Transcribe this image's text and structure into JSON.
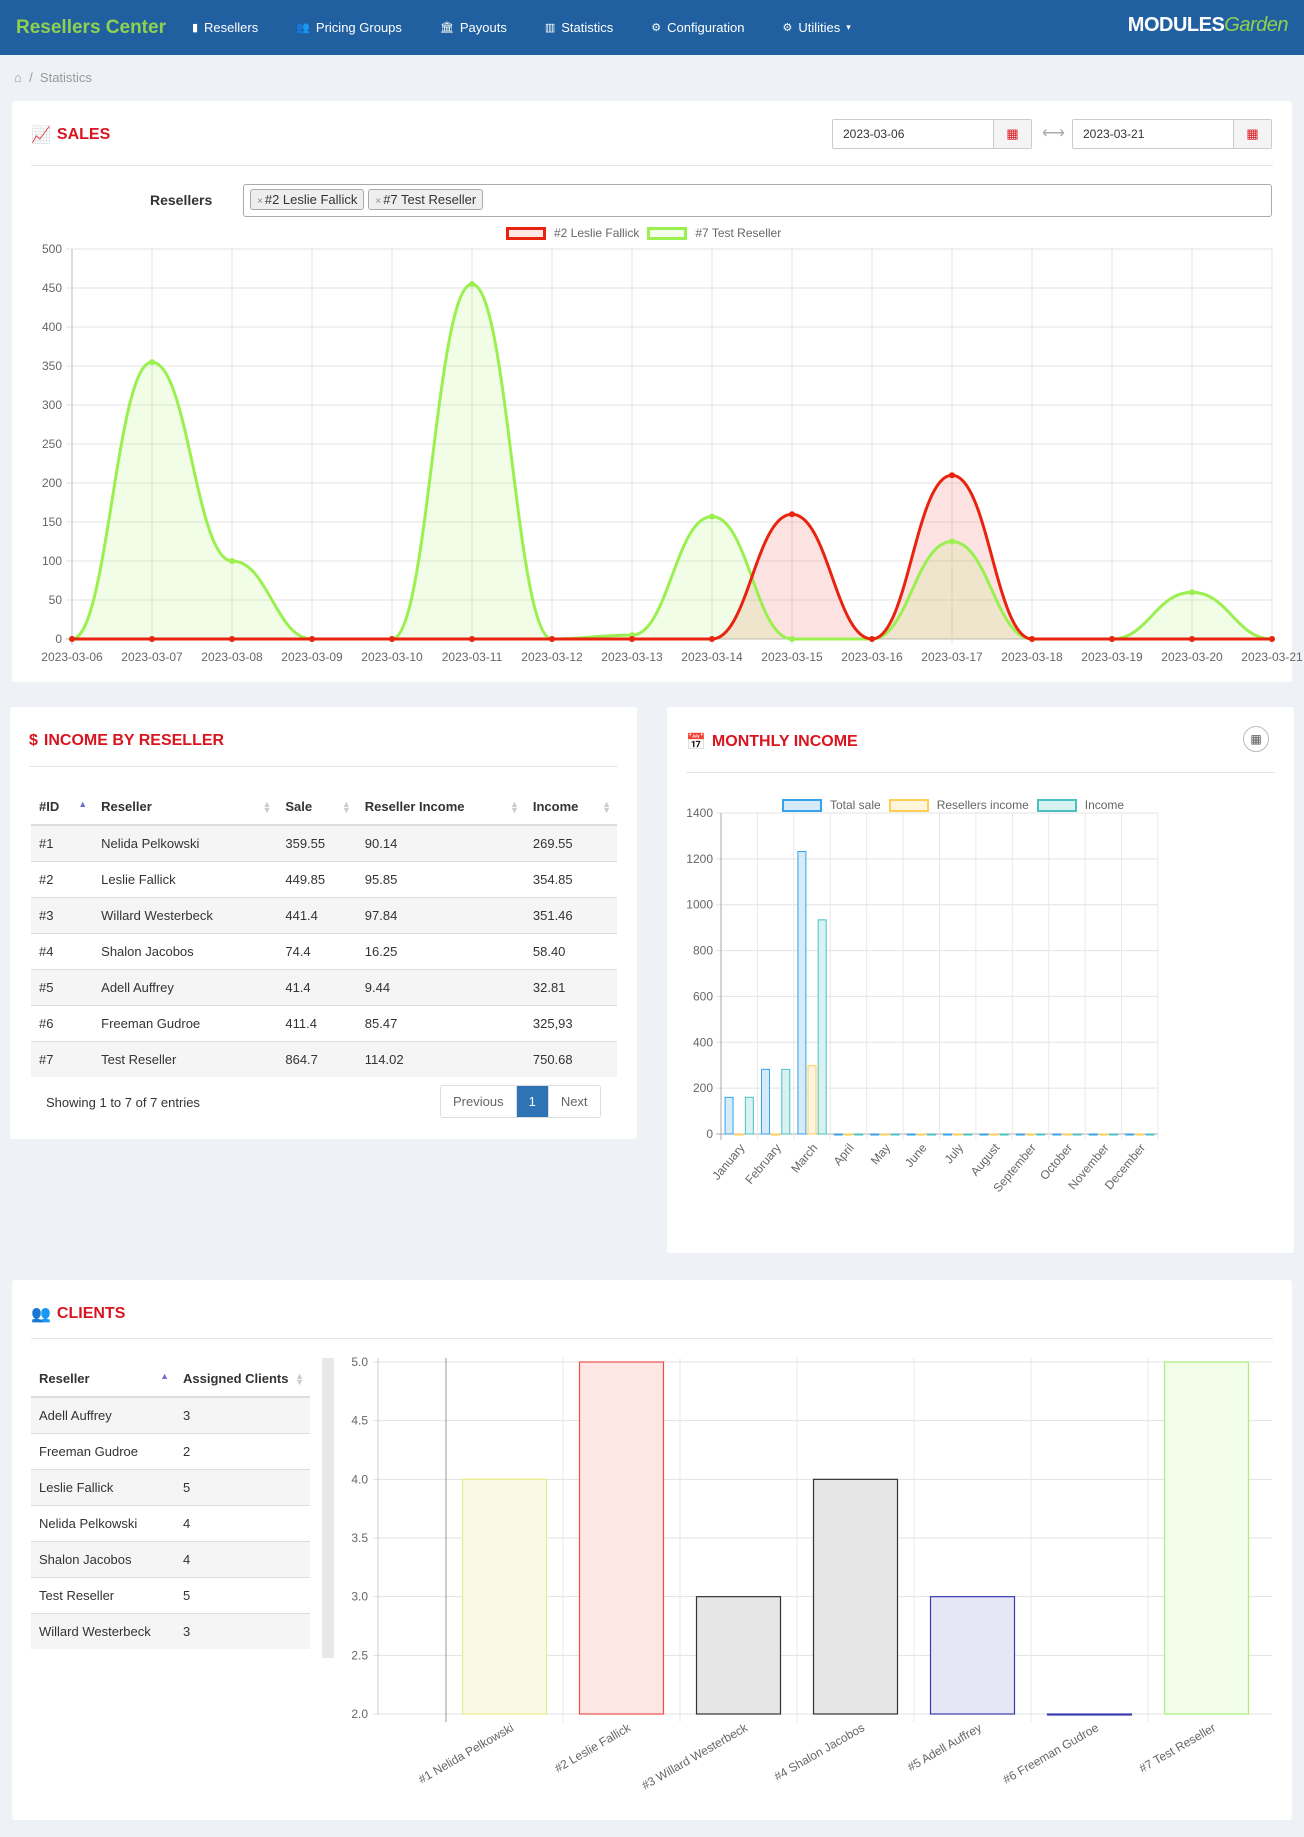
{
  "nav": {
    "brand": "Resellers Center",
    "items": [
      {
        "label": "Resellers",
        "icon": "briefcase-icon",
        "glyph": "▮"
      },
      {
        "label": "Pricing Groups",
        "icon": "users-icon",
        "glyph": "👥"
      },
      {
        "label": "Payouts",
        "icon": "bank-icon",
        "glyph": "🏛"
      },
      {
        "label": "Statistics",
        "icon": "bar-chart-icon",
        "glyph": "▥"
      },
      {
        "label": "Configuration",
        "icon": "gears-icon",
        "glyph": "⚙"
      },
      {
        "label": "Utilities",
        "icon": "gear-icon",
        "glyph": "⚙"
      }
    ],
    "logo": "MODULES",
    "logo2": "Garden"
  },
  "breadcrumb": {
    "current": "Statistics"
  },
  "sales": {
    "title": "SALES",
    "date_from": "2023-03-06",
    "date_to": "2023-03-21",
    "resellers_label": "Resellers",
    "selected": [
      "#2 Leslie Fallick",
      "#7 Test Reseller"
    ]
  },
  "income": {
    "title": "INCOME BY RESELLER",
    "columns": [
      "#ID",
      "Reseller",
      "Sale",
      "Reseller Income",
      "Income"
    ],
    "rows": [
      [
        "#1",
        "Nelida Pelkowski",
        "359.55",
        "90.14",
        "269.55"
      ],
      [
        "#2",
        "Leslie Fallick",
        "449.85",
        "95.85",
        "354.85"
      ],
      [
        "#3",
        "Willard Westerbeck",
        "441.4",
        "97.84",
        "351.46"
      ],
      [
        "#4",
        "Shalon Jacobos",
        "74.4",
        "16.25",
        "58.40"
      ],
      [
        "#5",
        "Adell Auffrey",
        "41.4",
        "9.44",
        "32.81"
      ],
      [
        "#6",
        "Freeman Gudroe",
        "411.4",
        "85.47",
        "325,93"
      ],
      [
        "#7",
        "Test Reseller",
        "864.7",
        "114.02",
        "750.68"
      ]
    ],
    "info": "Showing 1 to 7 of 7 entries",
    "prev": "Previous",
    "page": "1",
    "next": "Next"
  },
  "monthly": {
    "title": "MONTHLY INCOME"
  },
  "clients": {
    "title": "CLIENTS",
    "columns": [
      "Reseller",
      "Assigned Clients"
    ],
    "rows": [
      [
        "Adell Auffrey",
        "3"
      ],
      [
        "Freeman Gudroe",
        "2"
      ],
      [
        "Leslie Fallick",
        "5"
      ],
      [
        "Nelida Pelkowski",
        "4"
      ],
      [
        "Shalon Jacobos",
        "4"
      ],
      [
        "Test Reseller",
        "5"
      ],
      [
        "Willard Westerbeck",
        "3"
      ]
    ]
  },
  "chart_data": [
    {
      "type": "line",
      "x": [
        "2023-03-06",
        "2023-03-07",
        "2023-03-08",
        "2023-03-09",
        "2023-03-10",
        "2023-03-11",
        "2023-03-12",
        "2023-03-13",
        "2023-03-14",
        "2023-03-15",
        "2023-03-16",
        "2023-03-17",
        "2023-03-18",
        "2023-03-19",
        "2023-03-20",
        "2023-03-21"
      ],
      "ylim": [
        0,
        500
      ],
      "yticks": [
        0,
        50,
        100,
        150,
        200,
        250,
        300,
        350,
        400,
        450,
        500
      ],
      "legend": "top",
      "grid": true,
      "series": [
        {
          "name": "#2 Leslie Fallick",
          "color": "#e8230f",
          "fill": "rgba(240,100,90,0.18)",
          "values": [
            0,
            0,
            0,
            0,
            0,
            0,
            0,
            0,
            0,
            160,
            0,
            210,
            0,
            0,
            0,
            0
          ]
        },
        {
          "name": "#7 Test Reseller",
          "color": "#9af04f",
          "fill": "rgba(160,240,90,0.15)",
          "values": [
            0,
            355,
            100,
            0,
            0,
            455,
            0,
            5,
            157,
            0,
            0,
            125,
            0,
            0,
            60,
            0
          ]
        }
      ]
    },
    {
      "type": "bar",
      "categories": [
        "January",
        "February",
        "March",
        "April",
        "May",
        "June",
        "July",
        "August",
        "September",
        "October",
        "November",
        "December"
      ],
      "ylim": [
        0,
        1400
      ],
      "yticks": [
        0,
        200,
        400,
        600,
        800,
        1000,
        1200,
        1400
      ],
      "legend": "top",
      "grid": true,
      "series": [
        {
          "name": "Total sale",
          "color": "#36a2eb",
          "fill": "#d6eaf8",
          "values": [
            160,
            282,
            1232,
            0,
            0,
            0,
            0,
            0,
            0,
            0,
            0,
            0
          ]
        },
        {
          "name": "Resellers income",
          "color": "#ffce56",
          "fill": "#fff4dc",
          "values": [
            0,
            0,
            298,
            0,
            0,
            0,
            0,
            0,
            0,
            0,
            0,
            0
          ]
        },
        {
          "name": "Income",
          "color": "#4bc0c0",
          "fill": "#d8f2f2",
          "values": [
            160,
            282,
            934,
            0,
            0,
            0,
            0,
            0,
            0,
            0,
            0,
            0
          ]
        }
      ]
    },
    {
      "type": "bar",
      "categories": [
        "#1 Nelida Pelkowski",
        "#2 Leslie Fallick",
        "#3 Willard Westerbeck",
        "#4 Shalon Jacobos",
        "#5 Adell Auffrey",
        "#6 Freeman Gudroe",
        "#7 Test Reseller"
      ],
      "values": [
        4,
        5,
        3,
        4,
        3,
        2,
        5
      ],
      "ylim": [
        2,
        5
      ],
      "yticks": [
        "2.0",
        "2.5",
        "3.0",
        "3.5",
        "4.0",
        "4.5",
        "5.0"
      ],
      "grid": true,
      "colors": [
        [
          "#e8ec8a",
          "#f9fae6"
        ],
        [
          "#e8524a",
          "#fde6e4"
        ],
        [
          "#333333",
          "#e6e6e6"
        ],
        [
          "#333333",
          "#e6e6e6"
        ],
        [
          "#3b3bb0",
          "#e6e6f6"
        ],
        [
          "#3b3bb0",
          "#e6e6f6"
        ],
        [
          "#a8f07a",
          "#f2fdea"
        ]
      ]
    }
  ]
}
